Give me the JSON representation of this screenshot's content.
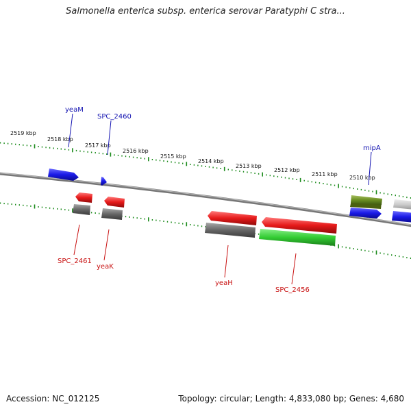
{
  "title": "Salmonella enterica subsp. enterica serovar Paratyphi C stra...",
  "footer": {
    "accession": "Accession: NC_012125",
    "summary": "Topology: circular; Length: 4,833,080 bp; Genes: 4,680"
  },
  "scale": {
    "labels": [
      "2519 kbp",
      "2518 kbp",
      "2517 kbp",
      "2516 kbp",
      "2515 kbp",
      "2514 kbp",
      "2513 kbp",
      "2512 kbp",
      "2511 kbp",
      "2510 kbp"
    ]
  },
  "genes": {
    "yeaM": "yeaM",
    "SPC_2460": "SPC_2460",
    "mipA": "mipA",
    "SPC_2461": "SPC_2461",
    "yeaK": "yeaK",
    "yeaH": "yeaH",
    "SPC_2456": "SPC_2456"
  },
  "colors": {
    "forward_cds": "#1a1ae6",
    "reverse_cds": "#e61a1a",
    "gene_shadow": "#666666",
    "rna": "#33cc33",
    "other": "#6b8e23",
    "ticks": "#1a8a1a",
    "backbone": "#888888"
  }
}
